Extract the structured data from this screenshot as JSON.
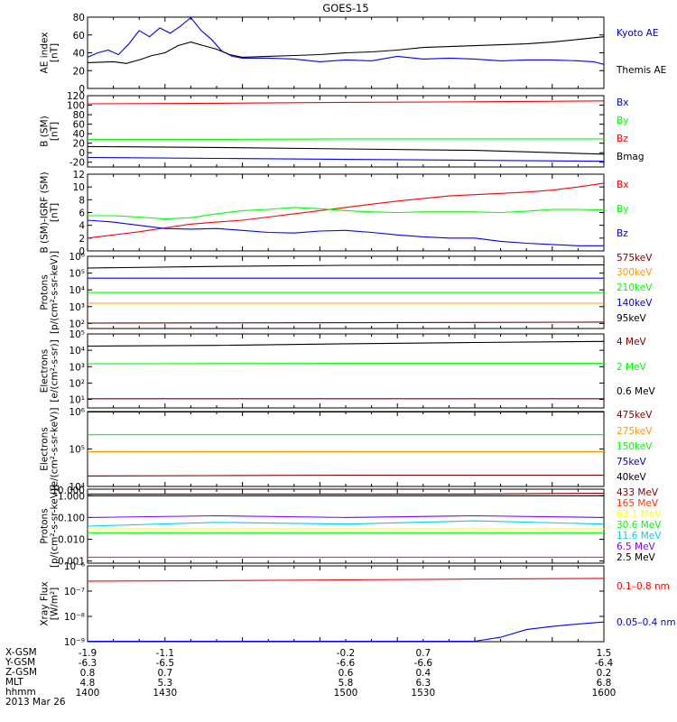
{
  "figure": {
    "title": "GOES-15",
    "date_label": "2013 Mar 26"
  },
  "chart_data": [
    {
      "type": "line",
      "panel": "ae_index",
      "ylabel": [
        "AE index",
        "[nT]"
      ],
      "ylim": [
        0,
        80
      ],
      "yticks": [
        0,
        20,
        40,
        60,
        80
      ],
      "xlim": [
        1400,
        1600
      ],
      "series": [
        {
          "name": "Kyoto AE",
          "color": "#0000ff",
          "x": [
            1400,
            1404,
            1408,
            1412,
            1416,
            1420,
            1424,
            1428,
            1432,
            1436,
            1440,
            1444,
            1448,
            1452,
            1456,
            1460,
            1470,
            1480,
            1490,
            1500,
            1510,
            1520,
            1530,
            1540,
            1550,
            1560,
            1570,
            1580,
            1590,
            1596,
            1600
          ],
          "y": [
            35,
            40,
            43,
            38,
            50,
            65,
            58,
            68,
            62,
            70,
            80,
            65,
            55,
            42,
            36,
            34,
            34,
            33,
            30,
            32,
            31,
            36,
            33,
            34,
            33,
            31,
            32,
            32,
            31,
            30,
            27
          ]
        },
        {
          "name": "Themis AE",
          "color": "#000000",
          "x": [
            1400,
            1410,
            1415,
            1420,
            1425,
            1430,
            1435,
            1440,
            1445,
            1450,
            1455,
            1460,
            1470,
            1480,
            1490,
            1500,
            1510,
            1520,
            1530,
            1540,
            1550,
            1560,
            1570,
            1580,
            1590,
            1600
          ],
          "y": [
            29,
            30,
            28,
            32,
            37,
            40,
            48,
            52,
            48,
            44,
            38,
            35,
            36,
            37,
            38,
            40,
            41,
            43,
            46,
            47,
            48,
            49,
            50,
            52,
            55,
            58
          ]
        }
      ]
    },
    {
      "type": "line",
      "panel": "b_sm",
      "ylabel": [
        "B (SM)",
        "[nT]"
      ],
      "ylim": [
        -30,
        120
      ],
      "yticks": [
        -20,
        0,
        20,
        40,
        60,
        80,
        100,
        120
      ],
      "xlim": [
        1400,
        1600
      ],
      "series": [
        {
          "name": "Bx",
          "color": "#0000ff",
          "x": [
            1400,
            1450,
            1500,
            1550,
            1600
          ],
          "y": [
            -10,
            -12,
            -14,
            -16,
            -18
          ]
        },
        {
          "name": "By",
          "color": "#00ff00",
          "x": [
            1400,
            1450,
            1500,
            1550,
            1600
          ],
          "y": [
            28,
            28,
            29,
            29,
            29
          ]
        },
        {
          "name": "Bz",
          "color": "#ff0000",
          "x": [
            1400,
            1450,
            1500,
            1550,
            1600
          ],
          "y": [
            103,
            104,
            106,
            107,
            109
          ]
        },
        {
          "name": "Bmag",
          "color": "#000000",
          "x": [
            1400,
            1450,
            1500,
            1550,
            1600
          ],
          "y": [
            13,
            11,
            8,
            5,
            -3
          ]
        }
      ]
    },
    {
      "type": "line",
      "panel": "b_minus_igrf",
      "ylabel": [
        "B (SM)-IGRF (SM)",
        "[nT]"
      ],
      "ylim": [
        0,
        12
      ],
      "yticks": [
        0,
        2,
        4,
        6,
        8,
        10,
        12
      ],
      "xlim": [
        1400,
        1600
      ],
      "series": [
        {
          "name": "Bx",
          "color": "#ff0000",
          "x": [
            1400,
            1410,
            1420,
            1430,
            1440,
            1450,
            1460,
            1470,
            1480,
            1490,
            1500,
            1510,
            1520,
            1530,
            1540,
            1550,
            1560,
            1570,
            1580,
            1590,
            1600
          ],
          "y": [
            2,
            2.5,
            3,
            3.6,
            4.2,
            4.5,
            4.8,
            5.3,
            5.8,
            6.3,
            6.8,
            7.3,
            7.8,
            8.2,
            8.6,
            8.8,
            9.0,
            9.2,
            9.5,
            10.0,
            10.6
          ]
        },
        {
          "name": "By",
          "color": "#00ff00",
          "x": [
            1400,
            1410,
            1420,
            1430,
            1440,
            1450,
            1460,
            1470,
            1480,
            1490,
            1500,
            1510,
            1520,
            1530,
            1540,
            1550,
            1560,
            1570,
            1580,
            1590,
            1600
          ],
          "y": [
            5.5,
            5.5,
            5.3,
            5.0,
            5.2,
            5.8,
            6.3,
            6.5,
            6.8,
            6.6,
            6.3,
            6.1,
            6.0,
            6.1,
            6.1,
            6.1,
            6.0,
            6.2,
            6.5,
            6.5,
            6.4
          ]
        },
        {
          "name": "Bz",
          "color": "#0000ff",
          "x": [
            1400,
            1410,
            1420,
            1430,
            1440,
            1450,
            1460,
            1470,
            1480,
            1490,
            1500,
            1510,
            1520,
            1530,
            1540,
            1550,
            1560,
            1570,
            1580,
            1590,
            1600
          ],
          "y": [
            4.8,
            4.5,
            4.0,
            3.5,
            3.4,
            3.5,
            3.2,
            2.9,
            2.8,
            3.1,
            3.2,
            2.9,
            2.5,
            2.2,
            2.0,
            2.0,
            1.5,
            1.2,
            1.0,
            0.8,
            0.8
          ]
        }
      ]
    },
    {
      "type": "line",
      "panel": "protons_mageds",
      "ylabel": [
        "Protons",
        "[p/(cm²-s-sr-keV)]"
      ],
      "log": true,
      "ylim": [
        50,
        1000000
      ],
      "yticks": [
        100,
        1000,
        10000,
        100000,
        1000000
      ],
      "yticklabels": [
        "10²",
        "10³",
        "10⁴",
        "10⁵",
        "10⁶"
      ],
      "xlim": [
        1400,
        1600
      ],
      "series": [
        {
          "name": "575keV",
          "color": "#7f0000",
          "x": [
            1400,
            1450,
            1500,
            1550,
            1600
          ],
          "y": [
            105,
            108,
            110,
            115,
            120
          ]
        },
        {
          "name": "300keV",
          "color": "#ff9900",
          "x": [
            1400,
            1450,
            1500,
            1550,
            1600
          ],
          "y": [
            1600,
            1600,
            1600,
            1600,
            1600
          ]
        },
        {
          "name": "210keV",
          "color": "#00ff00",
          "x": [
            1400,
            1450,
            1500,
            1550,
            1600
          ],
          "y": [
            7000,
            7000,
            7000,
            7000,
            7000
          ]
        },
        {
          "name": "140keV",
          "color": "#0000ff",
          "x": [
            1400,
            1450,
            1500,
            1550,
            1600
          ],
          "y": [
            50000,
            50000,
            50000,
            50000,
            50000
          ]
        },
        {
          "name": "95keV",
          "color": "#000000",
          "x": [
            1400,
            1450,
            1500,
            1550,
            1600
          ],
          "y": [
            200000,
            250000,
            290000,
            300000,
            310000
          ]
        }
      ]
    },
    {
      "type": "line",
      "panel": "electrons_eps",
      "ylabel": [
        "Electrons",
        "[e/(cm²-s-sr)]"
      ],
      "log": true,
      "ylim": [
        3,
        100000
      ],
      "yticks": [
        10,
        100,
        1000,
        10000,
        100000
      ],
      "yticklabels": [
        "10¹",
        "10²",
        "10³",
        "10⁴",
        "10⁵"
      ],
      "xlim": [
        1400,
        1600
      ],
      "series": [
        {
          "name": "4 MeV",
          "color": "#7f0000",
          "x": [
            1400,
            1450,
            1500,
            1550,
            1600
          ],
          "y": [
            11,
            11,
            11,
            11,
            11
          ]
        },
        {
          "name": "2 MeV",
          "color": "#00ff00",
          "x": [
            1400,
            1450,
            1500,
            1550,
            1600
          ],
          "y": [
            1500,
            1550,
            1600,
            1600,
            1600
          ]
        },
        {
          "name": "0.6 MeV",
          "color": "#000000",
          "x": [
            1400,
            1450,
            1500,
            1550,
            1600
          ],
          "y": [
            18000,
            20000,
            25000,
            30000,
            35000
          ]
        }
      ]
    },
    {
      "type": "line",
      "panel": "electrons_mageds",
      "ylabel": [
        "Electrons",
        "[e/(cm²-s-sr-keV)]"
      ],
      "log": true,
      "ylim": [
        10000,
        1000000
      ],
      "yticks": [
        10000,
        100000,
        1000000
      ],
      "yticklabels": [
        "10⁴",
        "10⁵",
        "10⁶"
      ],
      "xlim": [
        1400,
        1600
      ],
      "series": [
        {
          "name": "475keV",
          "color": "#7f0000",
          "x": [
            1400,
            1450,
            1500,
            1550,
            1600
          ],
          "y": [
            19000,
            19500,
            20000,
            20000,
            20000
          ]
        },
        {
          "name": "275keV",
          "color": "#ff9900",
          "x": [
            1400,
            1450,
            1500,
            1550,
            1600
          ],
          "y": [
            85000,
            85000,
            85000,
            85000,
            85000
          ]
        },
        {
          "name": "150keV",
          "color": "#00ff00",
          "x": [
            1400,
            1450,
            1500,
            1550,
            1600
          ],
          "y": [
            240000,
            240000,
            240000,
            240000,
            240000
          ]
        },
        {
          "name": "75keV",
          "color": "#0000ff",
          "x": [
            1400,
            1450,
            1500,
            1550,
            1600
          ],
          "y": [
            1000000,
            1000000,
            1000000,
            1000000,
            1000000
          ]
        },
        {
          "name": "40keV",
          "color": "#000000",
          "x": [
            1400,
            1450,
            1500,
            1550,
            1600
          ],
          "y": [
            1000000,
            1000000,
            1000000,
            1000000,
            1000000
          ]
        }
      ]
    },
    {
      "type": "line",
      "panel": "protons_hepad",
      "ylabel": [
        "Protons",
        "[p/(cm²-s-sr-keV)]"
      ],
      "log": true,
      "ylim": [
        0.0008,
        2
      ],
      "yticks": [
        0.001,
        0.01,
        0.1,
        1
      ],
      "yticklabels": [
        "0.001",
        "0.010",
        "0.100",
        "1.000"
      ],
      "ytickextra_labels": [
        "10.000"
      ],
      "xlim": [
        1400,
        1600
      ],
      "series": [
        {
          "name": "433 MeV",
          "color": "#7f0000",
          "x": [
            1400,
            1450,
            1500,
            1550,
            1600
          ],
          "y": [
            1.2,
            1.2,
            1.2,
            1.2,
            1.3
          ]
        },
        {
          "name": "165 MeV",
          "color": "#ff3300",
          "x": [
            1400,
            1450,
            1500,
            1550,
            1600
          ],
          "y": [
            0.0015,
            0.0015,
            0.0015,
            0.0015,
            0.0015
          ]
        },
        {
          "name": "63.1 MeV",
          "color": "#ffff00",
          "x": [
            1400,
            1450,
            1500,
            1550,
            1600
          ],
          "y": [
            0.03,
            0.03,
            0.03,
            0.03,
            0.03
          ]
        },
        {
          "name": "30.6 MeV",
          "color": "#00ff00",
          "x": [
            1400,
            1450,
            1500,
            1550,
            1600
          ],
          "y": [
            0.02,
            0.02,
            0.02,
            0.02,
            0.02
          ]
        },
        {
          "name": "11.6 MeV",
          "color": "#00ccff",
          "x": [
            1400,
            1450,
            1500,
            1550,
            1600
          ],
          "y": [
            0.04,
            0.06,
            0.05,
            0.07,
            0.05
          ]
        },
        {
          "name": "6.5 MeV",
          "color": "#7f00ff",
          "x": [
            1400,
            1450,
            1500,
            1550,
            1600
          ],
          "y": [
            0.1,
            0.12,
            0.1,
            0.12,
            0.1
          ]
        },
        {
          "name": "2.5 MeV",
          "color": "#000000",
          "x": [
            1400,
            1450,
            1500,
            1550,
            1600
          ],
          "y": [
            1.0,
            1.0,
            1.0,
            1.0,
            1.0
          ]
        }
      ]
    },
    {
      "type": "line",
      "panel": "xray_flux",
      "ylabel": [
        "Xray Flux",
        "[W/m²]"
      ],
      "log": true,
      "ylim": [
        1e-09,
        1e-06
      ],
      "yticks": [
        1e-09,
        1e-08,
        1e-07,
        1e-06
      ],
      "yticklabels": [
        "10⁻⁹",
        "10⁻⁸",
        "10⁻⁷",
        "10⁻⁶"
      ],
      "xlim": [
        1400,
        1600
      ],
      "series": [
        {
          "name": "0.1–0.8 nm",
          "color": "#ff0000",
          "x": [
            1400,
            1450,
            1500,
            1550,
            1600
          ],
          "y": [
            2.5e-07,
            2.6e-07,
            2.8e-07,
            3e-07,
            3.2e-07
          ]
        },
        {
          "name": "0.05–0.4 nm",
          "color": "#0000ff",
          "x": [
            1400,
            1450,
            1500,
            1550,
            1560,
            1570,
            1580,
            1590,
            1600
          ],
          "y": [
            1e-09,
            1e-09,
            1e-09,
            1e-09,
            1.5e-09,
            3e-09,
            4e-09,
            5e-09,
            6e-09
          ]
        }
      ]
    }
  ],
  "ephemeris": {
    "row_labels": [
      "X-GSM",
      "Y-GSM",
      "Z-GSM",
      "MLT",
      "hhmm"
    ],
    "columns": [
      {
        "x": 1400,
        "values": [
          "-1.9",
          "-6.3",
          "0.8",
          "4.8",
          "1400"
        ]
      },
      {
        "x": 1430,
        "values": [
          "-1.1",
          "-6.5",
          "0.7",
          "5.3",
          "1430"
        ]
      },
      {
        "x": 1500,
        "values": [
          "-0.2",
          "-6.6",
          "0.6",
          "5.8",
          "1500"
        ]
      },
      {
        "x": 1530,
        "values": [
          "0.7",
          "-6.6",
          "0.4",
          "6.3",
          "1530"
        ]
      },
      {
        "x": 1600,
        "values": [
          "1.5",
          "-6.4",
          "0.2",
          "6.8",
          "1600"
        ]
      }
    ]
  }
}
